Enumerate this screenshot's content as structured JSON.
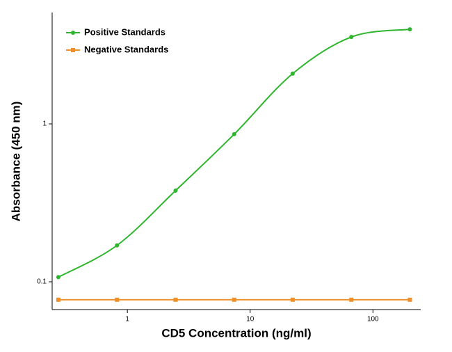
{
  "chart_data": {
    "type": "line",
    "x_label": "CD5 Concentration (ng/ml)",
    "y_label": "Absorbance (450 nm)",
    "x": [
      0.274,
      0.823,
      2.47,
      7.41,
      22.2,
      66.7,
      200
    ],
    "series": [
      {
        "name": "Positive Standards",
        "color": "#2db52d",
        "marker": "circle",
        "values": [
          0.107,
          0.17,
          0.378,
          0.86,
          2.08,
          3.55,
          3.97
        ]
      },
      {
        "name": "Negative Standards",
        "color": "#f0902a",
        "marker": "square",
        "values": [
          0.077,
          0.077,
          0.077,
          0.077,
          0.077,
          0.077,
          0.077
        ]
      }
    ],
    "xlim": [
      0.244,
      245
    ],
    "ylim": [
      0.0667,
      5.07
    ],
    "xticks": [
      1,
      10,
      100
    ],
    "yticks": [
      0.1,
      1
    ],
    "xscale": "log",
    "yscale": "log",
    "legend": "upper left",
    "smooth": true
  }
}
